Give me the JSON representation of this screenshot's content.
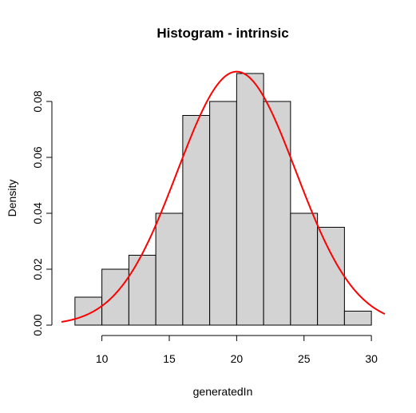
{
  "chart_data": {
    "type": "bar",
    "title": "Histogram - intrinsic",
    "xlabel": "generatedIn",
    "ylabel": "Density",
    "bins": [
      {
        "start": 8,
        "end": 10,
        "value": 0.01
      },
      {
        "start": 10,
        "end": 12,
        "value": 0.02
      },
      {
        "start": 12,
        "end": 14,
        "value": 0.025
      },
      {
        "start": 14,
        "end": 16,
        "value": 0.04
      },
      {
        "start": 16,
        "end": 18,
        "value": 0.075
      },
      {
        "start": 18,
        "end": 20,
        "value": 0.08
      },
      {
        "start": 20,
        "end": 22,
        "value": 0.09
      },
      {
        "start": 22,
        "end": 24,
        "value": 0.08
      },
      {
        "start": 24,
        "end": 26,
        "value": 0.04
      },
      {
        "start": 26,
        "end": 28,
        "value": 0.035
      },
      {
        "start": 28,
        "end": 30,
        "value": 0.005
      }
    ],
    "xlim": [
      7,
      31
    ],
    "ylim": [
      0,
      0.095
    ],
    "x_ticks": [
      10,
      15,
      20,
      25,
      30
    ],
    "y_ticks": [
      0.0,
      0.02,
      0.04,
      0.06,
      0.08
    ],
    "x_tick_labels": [
      "10",
      "15",
      "20",
      "25",
      "30"
    ],
    "y_tick_labels": [
      "0.00",
      "0.02",
      "0.04",
      "0.06",
      "0.08"
    ],
    "bar_fill": "#d3d3d3",
    "curve": {
      "type": "normal-density",
      "mean": 20,
      "sd": 4.4,
      "x_range": [
        7,
        31
      ],
      "color": "#ff0000"
    },
    "grid": false
  }
}
